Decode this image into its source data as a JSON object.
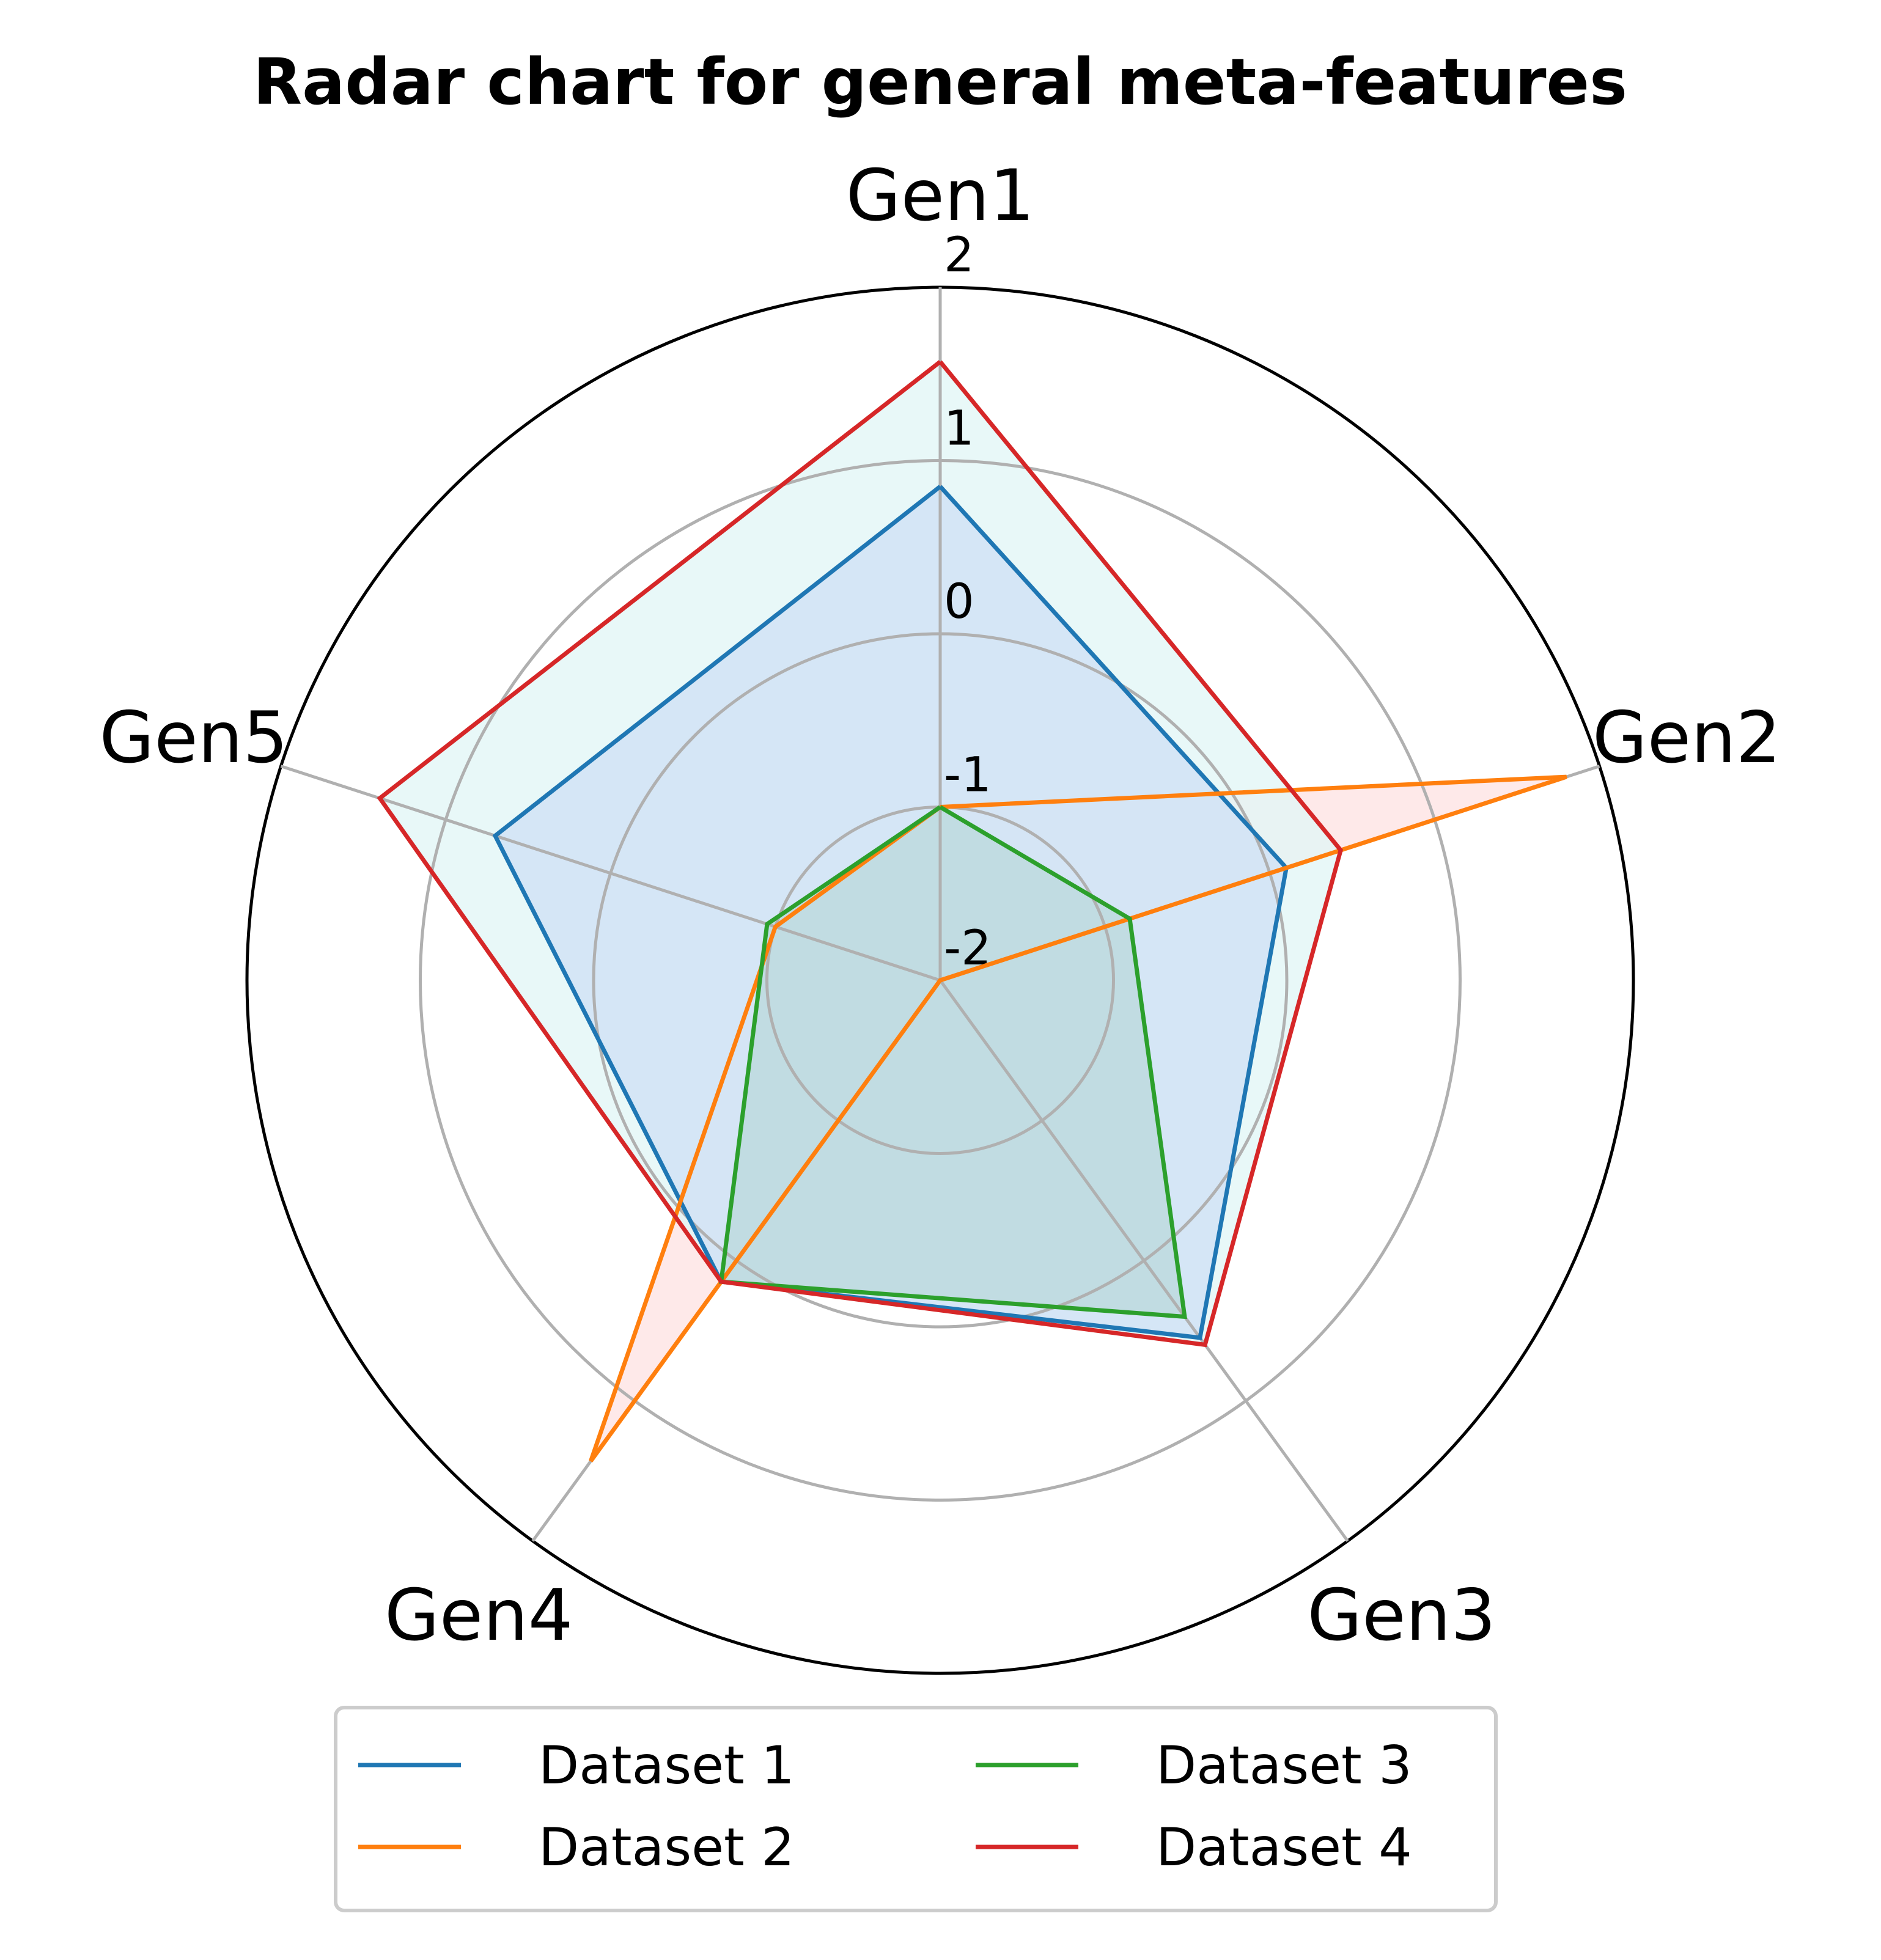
{
  "chart_data": {
    "type": "radar",
    "title": "Radar chart for general meta-features",
    "axes": [
      "Gen1",
      "Gen2",
      "Gen3",
      "Gen4",
      "Gen5"
    ],
    "rlim": [
      -2,
      2
    ],
    "rticks": [
      -2,
      -1,
      0,
      1,
      2
    ],
    "rtick_labels": [
      "-2",
      "-1",
      "0",
      "1",
      "2"
    ],
    "grid": true,
    "legend_position": "bottom",
    "legend_columns": 2,
    "series": [
      {
        "name": "Dataset 1",
        "values": [
          0.85,
          0.1,
          0.55,
          0.15,
          0.7
        ],
        "color": "#1f77b4",
        "fill": "#cfe0f5"
      },
      {
        "name": "Dataset 2",
        "values": [
          -1.0,
          1.8,
          -2.0,
          1.43,
          -1.0
        ],
        "color": "#ff7f0e",
        "fill": "#fde1e1"
      },
      {
        "name": "Dataset 3",
        "values": [
          -1.0,
          -0.85,
          0.4,
          0.15,
          -0.95
        ],
        "color": "#2ca02c",
        "fill": "#b9d8db"
      },
      {
        "name": "Dataset 4",
        "values": [
          1.57,
          0.43,
          0.6,
          0.15,
          1.4
        ],
        "color": "#d62728",
        "fill": "#e0f6f5"
      }
    ],
    "fill_order": [
      1,
      3,
      0,
      2
    ]
  }
}
